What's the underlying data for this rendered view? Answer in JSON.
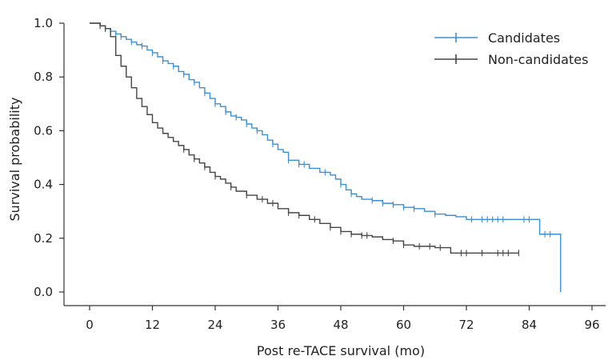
{
  "chart_data": {
    "type": "line",
    "step": true,
    "title": "",
    "xlabel": "Post re-TACE survival (mo)",
    "ylabel": "Survival probability",
    "xlim": [
      0,
      96
    ],
    "ylim": [
      0.0,
      1.0
    ],
    "x_ticks": [
      0,
      12,
      24,
      36,
      48,
      60,
      72,
      84,
      96
    ],
    "y_ticks": [
      0.0,
      0.2,
      0.4,
      0.6,
      0.8,
      1.0
    ],
    "x_tick_labels": [
      "0",
      "12",
      "24",
      "36",
      "48",
      "60",
      "72",
      "84",
      "96"
    ],
    "y_tick_labels": [
      "0.0",
      "0.2",
      "0.4",
      "0.6",
      "0.8",
      "1.0"
    ],
    "grid": false,
    "legend_position": "top-right",
    "series": [
      {
        "name": "Candidates",
        "color": "#3b8fd4",
        "x": [
          0,
          2,
          3,
          4,
          5,
          6,
          7,
          8,
          9,
          10,
          11,
          12,
          13,
          14,
          15,
          16,
          17,
          18,
          19,
          20,
          21,
          22,
          23,
          24,
          25,
          26,
          27,
          28,
          29,
          30,
          31,
          32,
          33,
          34,
          35,
          36,
          37,
          38,
          40,
          42,
          44,
          46,
          47,
          48,
          49,
          50,
          51,
          52,
          54,
          56,
          58,
          60,
          62,
          64,
          66,
          68,
          70,
          72,
          80,
          86,
          87,
          90,
          90
        ],
        "y": [
          1.0,
          0.99,
          0.98,
          0.97,
          0.96,
          0.95,
          0.94,
          0.93,
          0.92,
          0.915,
          0.9,
          0.89,
          0.875,
          0.86,
          0.85,
          0.84,
          0.82,
          0.81,
          0.79,
          0.78,
          0.76,
          0.74,
          0.72,
          0.7,
          0.69,
          0.67,
          0.655,
          0.65,
          0.64,
          0.625,
          0.61,
          0.6,
          0.585,
          0.565,
          0.55,
          0.53,
          0.52,
          0.49,
          0.475,
          0.46,
          0.445,
          0.435,
          0.42,
          0.4,
          0.38,
          0.365,
          0.355,
          0.345,
          0.34,
          0.33,
          0.325,
          0.315,
          0.31,
          0.3,
          0.29,
          0.285,
          0.28,
          0.27,
          0.27,
          0.215,
          0.215,
          0.215,
          0.0
        ],
        "censor_x": [
          3,
          4,
          5,
          6,
          8,
          10,
          12,
          14,
          16,
          18,
          20,
          22,
          24,
          26,
          28,
          30,
          32,
          35,
          38,
          40,
          41,
          45,
          48,
          50,
          54,
          56,
          58,
          60,
          62,
          66,
          73,
          75,
          76,
          77,
          78,
          79,
          83,
          84,
          87,
          88
        ]
      },
      {
        "name": "Non-candidates",
        "color": "#454545",
        "x": [
          0,
          2,
          3,
          4,
          5,
          6,
          7,
          8,
          9,
          10,
          11,
          12,
          13,
          14,
          15,
          16,
          17,
          18,
          19,
          20,
          21,
          22,
          23,
          24,
          25,
          26,
          27,
          28,
          30,
          32,
          34,
          36,
          38,
          40,
          42,
          44,
          46,
          48,
          50,
          52,
          54,
          56,
          58,
          60,
          62,
          64,
          66,
          68,
          69,
          75,
          80,
          82
        ],
        "y": [
          1.0,
          0.99,
          0.98,
          0.95,
          0.88,
          0.84,
          0.8,
          0.76,
          0.72,
          0.69,
          0.66,
          0.63,
          0.61,
          0.59,
          0.575,
          0.56,
          0.545,
          0.53,
          0.51,
          0.495,
          0.48,
          0.465,
          0.445,
          0.43,
          0.42,
          0.405,
          0.39,
          0.375,
          0.36,
          0.345,
          0.33,
          0.31,
          0.295,
          0.285,
          0.27,
          0.255,
          0.24,
          0.225,
          0.215,
          0.21,
          0.205,
          0.195,
          0.19,
          0.175,
          0.17,
          0.17,
          0.165,
          0.165,
          0.145,
          0.145,
          0.145,
          0.145
        ],
        "censor_x": [
          2,
          3,
          18,
          20,
          22,
          24,
          27,
          30,
          33,
          35,
          38,
          40,
          43,
          46,
          48,
          50,
          52,
          53,
          58,
          60,
          63,
          65,
          67,
          71,
          72,
          75,
          78,
          79,
          80,
          82
        ]
      }
    ]
  }
}
